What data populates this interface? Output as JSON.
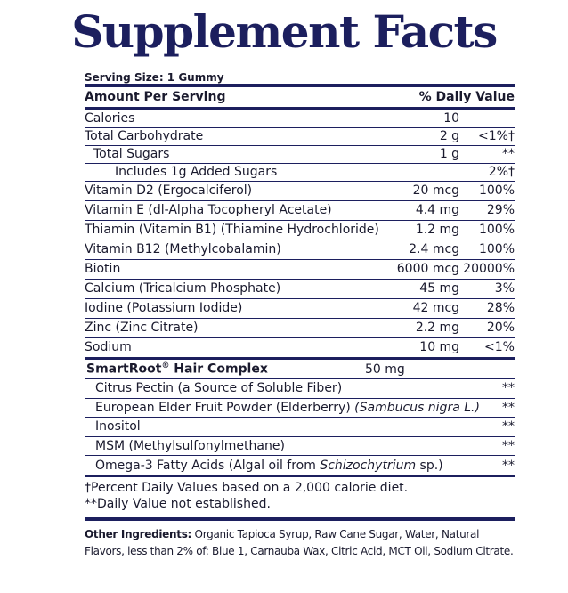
{
  "title": "Supplement Facts",
  "serving_size": "Serving Size: 1 Gummy",
  "header": {
    "amount": "Amount Per Serving",
    "dv": "% Daily Value"
  },
  "nutrients": [
    {
      "name": "Calories",
      "amount": "10",
      "dv": ""
    },
    {
      "name": "Total Carbohydrate",
      "amount": "2 g",
      "dv": "<1%†"
    },
    {
      "name": "Total Sugars",
      "amount": "1 g",
      "dv": "**"
    },
    {
      "name": "Includes 1g Added Sugars",
      "amount": "",
      "dv": "2%†"
    },
    {
      "name": "Vitamin D2 (Ergocalciferol)",
      "amount": "20 mcg",
      "dv": "100%"
    },
    {
      "name": "Vitamin E (dl-Alpha Tocopheryl Acetate)",
      "amount": "4.4 mg",
      "dv": "29%"
    },
    {
      "name": "Thiamin (Vitamin B1) (Thiamine Hydrochloride)",
      "amount": "1.2 mg",
      "dv": "100%"
    },
    {
      "name": "Vitamin B12 (Methylcobalamin)",
      "amount": "2.4 mcg",
      "dv": "100%"
    },
    {
      "name": "Biotin",
      "amount": "6000 mcg",
      "dv": "20000%"
    },
    {
      "name": "Calcium (Tricalcium Phosphate)",
      "amount": "45 mg",
      "dv": "3%"
    },
    {
      "name": "Iodine (Potassium Iodide)",
      "amount": "42 mcg",
      "dv": "28%"
    },
    {
      "name": "Zinc (Zinc Citrate)",
      "amount": "2.2 mg",
      "dv": "20%"
    },
    {
      "name": "Sodium",
      "amount": "10 mg",
      "dv": "<1%"
    }
  ],
  "blend": {
    "name": "SmartRoot",
    "reg": "®",
    "name_rest": " Hair Complex",
    "amount": "50 mg",
    "items": [
      {
        "name": "Citrus Pectin (a Source of Soluble Fiber)",
        "italic": "",
        "after": "",
        "dv": "**"
      },
      {
        "name": "European Elder Fruit Powder (Elderberry) ",
        "italic": "(Sambucus nigra L.)",
        "after": "",
        "dv": "**"
      },
      {
        "name": "Inositol",
        "italic": "",
        "after": "",
        "dv": "**"
      },
      {
        "name": "MSM (Methylsulfonylmethane)",
        "italic": "",
        "after": "",
        "dv": "**"
      },
      {
        "name": "Omega-3 Fatty Acids (Algal oil from ",
        "italic": "Schizochytrium",
        "after": " sp.)",
        "dv": "**"
      }
    ]
  },
  "footnotes": [
    "†Percent Daily Values based on a 2,000 calorie diet.",
    "**Daily Value not established."
  ],
  "other_ingredients": {
    "label": "Other Ingredients:",
    "text": " Organic Tapioca Syrup, Raw Cane Sugar, Water, Natural Flavors, less than 2% of: Blue 1, Carnauba Wax, Citric Acid, MCT Oil, Sodium Citrate."
  },
  "colors": {
    "ink": "#1c1f5e",
    "text": "#1a1a2e"
  }
}
